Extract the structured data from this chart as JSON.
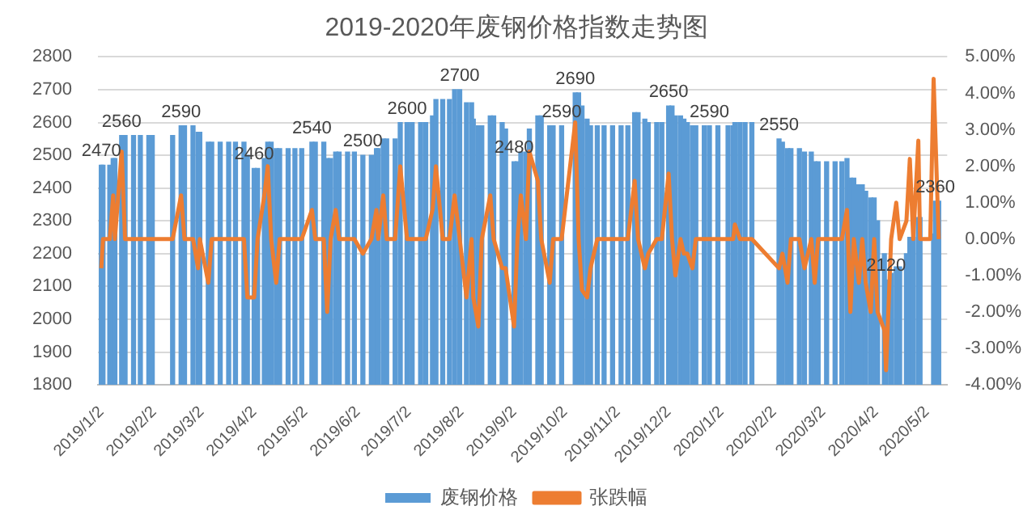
{
  "chart_data": {
    "type": "bar",
    "title": "2019-2020年废钢价格指数走势图",
    "x": [
      "2019-01-02",
      "2019-01-03",
      "2019-01-07",
      "2019-01-09",
      "2019-01-10",
      "2019-01-14",
      "2019-01-16",
      "2019-01-21",
      "2019-01-25",
      "2019-01-30",
      "2019-02-01",
      "2019-02-13",
      "2019-02-18",
      "2019-02-20",
      "2019-02-25",
      "2019-02-28",
      "2019-03-01",
      "2019-03-06",
      "2019-03-08",
      "2019-03-13",
      "2019-03-18",
      "2019-03-22",
      "2019-03-27",
      "2019-03-29",
      "2019-04-02",
      "2019-04-04",
      "2019-04-08",
      "2019-04-10",
      "2019-04-12",
      "2019-04-15",
      "2019-04-17",
      "2019-04-22",
      "2019-04-26",
      "2019-04-30",
      "2019-05-06",
      "2019-05-08",
      "2019-05-13",
      "2019-05-15",
      "2019-05-17",
      "2019-05-20",
      "2019-05-22",
      "2019-05-27",
      "2019-05-31",
      "2019-06-05",
      "2019-06-10",
      "2019-06-13",
      "2019-06-14",
      "2019-06-17",
      "2019-06-19",
      "2019-06-24",
      "2019-06-27",
      "2019-07-01",
      "2019-07-04",
      "2019-07-09",
      "2019-07-12",
      "2019-07-16",
      "2019-07-18",
      "2019-07-22",
      "2019-07-26",
      "2019-07-29",
      "2019-08-01",
      "2019-08-05",
      "2019-08-08",
      "2019-08-09",
      "2019-08-12",
      "2019-08-14",
      "2019-08-19",
      "2019-08-21",
      "2019-08-26",
      "2019-08-28",
      "2019-09-02",
      "2019-09-04",
      "2019-09-06",
      "2019-09-09",
      "2019-09-11",
      "2019-09-16",
      "2019-09-18",
      "2019-09-23",
      "2019-09-25",
      "2019-09-30",
      "2019-10-08",
      "2019-10-10",
      "2019-10-12",
      "2019-10-15",
      "2019-10-17",
      "2019-10-21",
      "2019-10-25",
      "2019-10-30",
      "2019-11-04",
      "2019-11-08",
      "2019-11-12",
      "2019-11-14",
      "2019-11-18",
      "2019-11-20",
      "2019-11-25",
      "2019-11-28",
      "2019-12-02",
      "2019-12-04",
      "2019-12-06",
      "2019-12-09",
      "2019-12-11",
      "2019-12-13",
      "2019-12-16",
      "2019-12-18",
      "2019-12-23",
      "2019-12-26",
      "2019-12-31",
      "2020-01-06",
      "2020-01-09",
      "2020-01-10",
      "2020-01-13",
      "2020-01-16",
      "2020-01-20",
      "2020-02-05",
      "2020-02-07",
      "2020-02-10",
      "2020-02-12",
      "2020-02-17",
      "2020-02-20",
      "2020-02-24",
      "2020-02-26",
      "2020-02-28",
      "2020-03-04",
      "2020-03-09",
      "2020-03-13",
      "2020-03-16",
      "2020-03-18",
      "2020-03-20",
      "2020-03-23",
      "2020-03-25",
      "2020-03-27",
      "2020-03-30",
      "2020-04-01",
      "2020-04-03",
      "2020-04-07",
      "2020-04-08",
      "2020-04-11",
      "2020-04-14",
      "2020-04-16",
      "2020-04-20",
      "2020-04-22",
      "2020-04-24",
      "2020-04-27",
      "2020-04-28",
      "2020-05-06",
      "2020-05-07",
      "2020-05-09"
    ],
    "series": [
      {
        "name": "废钢价格",
        "color": "#5b9bd5",
        "values": [
          2470,
          2470,
          2470,
          2490,
          2490,
          2560,
          2560,
          2560,
          2560,
          2560,
          2560,
          2560,
          2590,
          2590,
          2590,
          2570,
          2570,
          2540,
          2540,
          2540,
          2540,
          2540,
          2540,
          2500,
          2460,
          2460,
          2490,
          2540,
          2540,
          2520,
          2520,
          2520,
          2520,
          2520,
          2540,
          2540,
          2540,
          2490,
          2490,
          2510,
          2510,
          2510,
          2510,
          2500,
          2500,
          2520,
          2520,
          2550,
          2550,
          2550,
          2600,
          2600,
          2600,
          2600,
          2600,
          2620,
          2670,
          2670,
          2670,
          2700,
          2700,
          2660,
          2660,
          2610,
          2590,
          2590,
          2620,
          2620,
          2600,
          2580,
          2480,
          2480,
          2510,
          2510,
          2580,
          2620,
          2620,
          2590,
          2590,
          2590,
          2690,
          2690,
          2650,
          2610,
          2590,
          2590,
          2590,
          2590,
          2590,
          2590,
          2630,
          2630,
          2610,
          2600,
          2600,
          2600,
          2650,
          2650,
          2620,
          2620,
          2610,
          2600,
          2590,
          2590,
          2590,
          2590,
          2590,
          2590,
          2590,
          2600,
          2600,
          2600,
          2600,
          2550,
          2540,
          2520,
          2520,
          2520,
          2510,
          2510,
          2480,
          2480,
          2480,
          2480,
          2480,
          2490,
          2430,
          2430,
          2410,
          2410,
          2390,
          2370,
          2370,
          2300,
          2200,
          2120,
          2140,
          2160,
          2160,
          2200,
          2250,
          2250,
          2310,
          2310,
          2260,
          2360,
          2360
        ],
        "value_labels": [
          "2470",
          null,
          null,
          null,
          null,
          "2560",
          null,
          null,
          null,
          null,
          null,
          null,
          "2590",
          null,
          null,
          null,
          null,
          null,
          null,
          null,
          null,
          null,
          null,
          null,
          "2460",
          null,
          null,
          null,
          null,
          null,
          null,
          null,
          null,
          null,
          "2540",
          null,
          null,
          null,
          null,
          null,
          null,
          null,
          null,
          "2500",
          null,
          null,
          null,
          null,
          null,
          null,
          null,
          "2600",
          null,
          null,
          null,
          null,
          null,
          null,
          null,
          null,
          "2700",
          null,
          null,
          null,
          null,
          null,
          null,
          null,
          null,
          null,
          "2480",
          null,
          null,
          null,
          null,
          null,
          null,
          null,
          null,
          "2590",
          "2690",
          null,
          null,
          null,
          null,
          null,
          null,
          null,
          null,
          null,
          null,
          null,
          null,
          null,
          null,
          null,
          "2650",
          null,
          null,
          null,
          null,
          null,
          null,
          null,
          null,
          "2590",
          null,
          null,
          null,
          null,
          null,
          null,
          null,
          "2550",
          null,
          null,
          null,
          null,
          null,
          null,
          null,
          null,
          null,
          null,
          null,
          null,
          null,
          null,
          null,
          null,
          null,
          null,
          null,
          null,
          null,
          "2120",
          null,
          null,
          null,
          null,
          null,
          null,
          null,
          null,
          null,
          "2360",
          null
        ]
      },
      {
        "name": "张跌幅",
        "type": "line",
        "axis": "y2",
        "color": "#ed7d31",
        "x": [
          "2019-01-02",
          "2019-01-03",
          "2019-01-07",
          "2019-01-09",
          "2019-01-10",
          "2019-01-14",
          "2019-01-16",
          "2019-01-21",
          "2019-01-25",
          "2019-01-30",
          "2019-02-01",
          "2019-02-13",
          "2019-02-18",
          "2019-02-20",
          "2019-02-25",
          "2019-02-28",
          "2019-03-01",
          "2019-03-06",
          "2019-03-08",
          "2019-03-13",
          "2019-03-18",
          "2019-03-22",
          "2019-03-27",
          "2019-03-29",
          "2019-04-02",
          "2019-04-04",
          "2019-04-08",
          "2019-04-10",
          "2019-04-12",
          "2019-04-15",
          "2019-04-17",
          "2019-04-22",
          "2019-04-26",
          "2019-04-30",
          "2019-05-06",
          "2019-05-08",
          "2019-05-13",
          "2019-05-15",
          "2019-05-17",
          "2019-05-20",
          "2019-05-22",
          "2019-05-27",
          "2019-05-31",
          "2019-06-05",
          "2019-06-10",
          "2019-06-13",
          "2019-06-14",
          "2019-06-17",
          "2019-06-19",
          "2019-06-24",
          "2019-06-27",
          "2019-07-01",
          "2019-07-04",
          "2019-07-09",
          "2019-07-12",
          "2019-07-16",
          "2019-07-18",
          "2019-07-22",
          "2019-07-26",
          "2019-07-29",
          "2019-08-01",
          "2019-08-05",
          "2019-08-08",
          "2019-08-09",
          "2019-08-12",
          "2019-08-14",
          "2019-08-19",
          "2019-08-21",
          "2019-08-26",
          "2019-08-28",
          "2019-09-02",
          "2019-09-04",
          "2019-09-06",
          "2019-09-09",
          "2019-09-11",
          "2019-09-16",
          "2019-09-18",
          "2019-09-23",
          "2019-09-25",
          "2019-09-30",
          "2019-10-08",
          "2019-10-10",
          "2019-10-12",
          "2019-10-15",
          "2019-10-17",
          "2019-10-21",
          "2019-10-25",
          "2019-10-30",
          "2019-11-04",
          "2019-11-08",
          "2019-11-12",
          "2019-11-14",
          "2019-11-18",
          "2019-11-20",
          "2019-11-25",
          "2019-11-28",
          "2019-12-02",
          "2019-12-04",
          "2019-12-06",
          "2019-12-09",
          "2019-12-11",
          "2019-12-13",
          "2019-12-16",
          "2019-12-18",
          "2019-12-23",
          "2019-12-26",
          "2019-12-31",
          "2020-01-06",
          "2020-01-09",
          "2020-01-10",
          "2020-01-13",
          "2020-01-16",
          "2020-01-20",
          "2020-02-05",
          "2020-02-07",
          "2020-02-10",
          "2020-02-12",
          "2020-02-17",
          "2020-02-20",
          "2020-02-24",
          "2020-02-26",
          "2020-02-28",
          "2020-03-04",
          "2020-03-09",
          "2020-03-13",
          "2020-03-16",
          "2020-03-18",
          "2020-03-20",
          "2020-03-23",
          "2020-03-25",
          "2020-03-27",
          "2020-03-30",
          "2020-04-01",
          "2020-04-03",
          "2020-04-07",
          "2020-04-08",
          "2020-04-11",
          "2020-04-14",
          "2020-04-16",
          "2020-04-20",
          "2020-04-22",
          "2020-04-24",
          "2020-04-27",
          "2020-04-28",
          "2020-05-04",
          "2020-05-06",
          "2020-05-09"
        ],
        "values": [
          -0.8,
          0,
          0,
          1.2,
          0,
          2.4,
          0,
          0,
          0,
          0,
          0,
          0,
          1.2,
          0,
          0,
          -0.8,
          0,
          -1.2,
          0,
          0,
          0,
          0,
          0,
          -1.6,
          -1.6,
          0,
          1.2,
          2.0,
          0,
          -1.2,
          0,
          0,
          0,
          0,
          0.8,
          0,
          0,
          -2.0,
          0,
          0.8,
          0,
          0,
          0,
          -0.4,
          0,
          0.8,
          0,
          1.2,
          0,
          0,
          2.0,
          0,
          0,
          0,
          0,
          0.8,
          2.0,
          0,
          0,
          1.2,
          0,
          -1.6,
          0,
          -1.6,
          -2.4,
          0,
          1.2,
          0,
          -0.8,
          -0.8,
          -2.4,
          0,
          1.2,
          0,
          2.4,
          1.6,
          0,
          -1.2,
          0,
          0,
          3.2,
          0,
          -1.4,
          -1.6,
          -0.8,
          0,
          0,
          0,
          0,
          0,
          1.6,
          0,
          -0.8,
          -0.4,
          0,
          0,
          1.8,
          0,
          -1.0,
          0,
          -0.4,
          -0.4,
          -0.8,
          0,
          0,
          0,
          0,
          0,
          0,
          0.4,
          0,
          0,
          0,
          -0.8,
          -0.4,
          -1.2,
          0,
          0,
          -0.8,
          0,
          -1.2,
          0,
          0,
          0,
          0,
          0.8,
          -2.0,
          0,
          -1.2,
          0,
          -1.2,
          -2.0,
          0,
          -2.0,
          -2.5,
          -3.6,
          0,
          1.0,
          0,
          0.5,
          2.2,
          0,
          2.7,
          0,
          0,
          4.4,
          0
        ]
      }
    ],
    "xlim": [
      "2018-12-31",
      "2020-05-14"
    ],
    "xticks": [
      {
        "value": "2019-01-02",
        "label": "2019/1/2"
      },
      {
        "value": "2019-02-02",
        "label": "2019/2/2"
      },
      {
        "value": "2019-03-02",
        "label": "2019/3/2"
      },
      {
        "value": "2019-04-02",
        "label": "2019/4/2"
      },
      {
        "value": "2019-05-02",
        "label": "2019/5/2"
      },
      {
        "value": "2019-06-02",
        "label": "2019/6/2"
      },
      {
        "value": "2019-07-02",
        "label": "2019/7/2"
      },
      {
        "value": "2019-08-02",
        "label": "2019/8/2"
      },
      {
        "value": "2019-09-02",
        "label": "2019/9/2"
      },
      {
        "value": "2019-10-02",
        "label": "2019/10/2"
      },
      {
        "value": "2019-11-02",
        "label": "2019/11/2"
      },
      {
        "value": "2019-12-02",
        "label": "2019/12/2"
      },
      {
        "value": "2020-01-02",
        "label": "2020/1/2"
      },
      {
        "value": "2020-02-02",
        "label": "2020/2/2"
      },
      {
        "value": "2020-03-02",
        "label": "2020/3/2"
      },
      {
        "value": "2020-04-02",
        "label": "2020/4/2"
      },
      {
        "value": "2020-05-02",
        "label": "2020/5/2"
      }
    ],
    "ylim": [
      1800,
      2800
    ],
    "yticks": [
      1800,
      1900,
      2000,
      2100,
      2200,
      2300,
      2400,
      2500,
      2600,
      2700,
      2800
    ],
    "y2lim": [
      -4,
      5
    ],
    "y2ticks": [
      {
        "value": -4,
        "label": "-4.00%"
      },
      {
        "value": -3,
        "label": "-3.00%"
      },
      {
        "value": -2,
        "label": "-2.00%"
      },
      {
        "value": -1,
        "label": "-1.00%"
      },
      {
        "value": 0,
        "label": "0.00%"
      },
      {
        "value": 1,
        "label": "1.00%"
      },
      {
        "value": 2,
        "label": "2.00%"
      },
      {
        "value": 3,
        "label": "3.00%"
      },
      {
        "value": 4,
        "label": "4.00%"
      },
      {
        "value": 5,
        "label": "5.00%"
      }
    ],
    "grid": "y",
    "legend": "bottom",
    "line_style": "solid",
    "marker": "none"
  }
}
